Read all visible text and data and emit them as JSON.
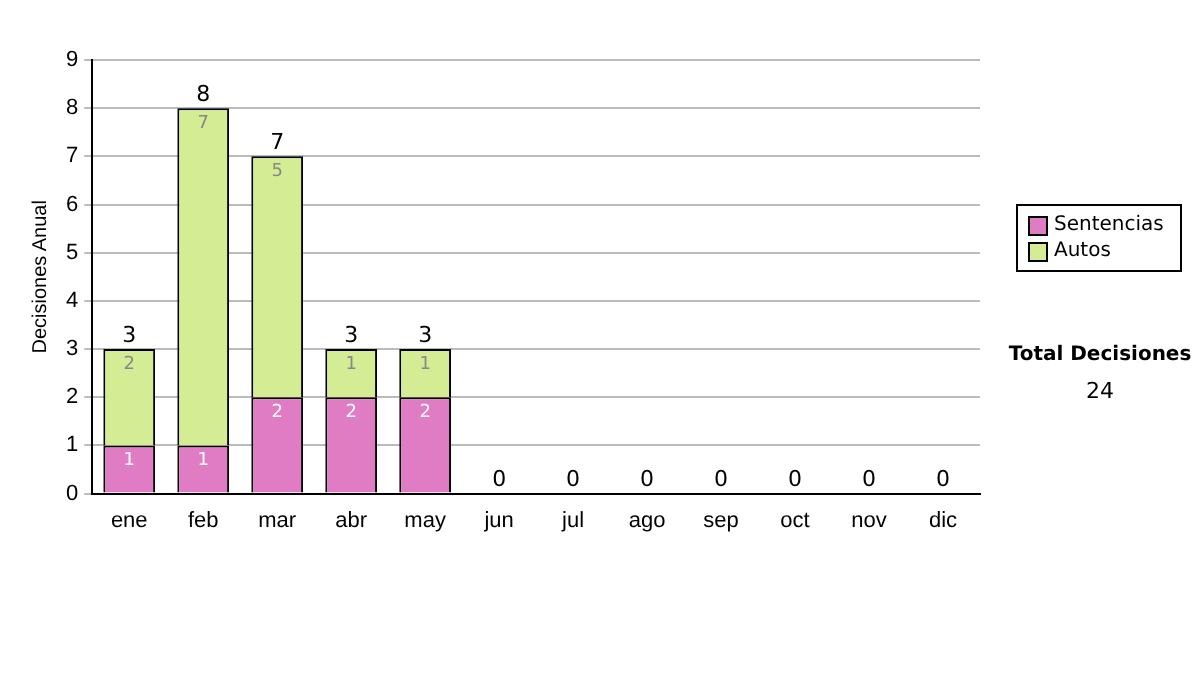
{
  "chart_data": {
    "type": "bar",
    "ylabel": "Decisiones Anual",
    "stacked": true,
    "grid": "y",
    "legend": "right",
    "categories": [
      "ene",
      "feb",
      "mar",
      "abr",
      "may",
      "jun",
      "jul",
      "ago",
      "sep",
      "oct",
      "nov",
      "dic"
    ],
    "series": [
      {
        "name": "Sentencias",
        "color": "#e07cc4",
        "values": [
          1,
          1,
          2,
          2,
          2,
          0,
          0,
          0,
          0,
          0,
          0,
          0
        ],
        "value_labels": [
          "1",
          "1",
          "2",
          "2",
          "2",
          null,
          null,
          null,
          null,
          null,
          null,
          null
        ]
      },
      {
        "name": "Autos",
        "color": "#d4ec94",
        "values": [
          2,
          7,
          5,
          1,
          1,
          0,
          0,
          0,
          0,
          0,
          0,
          0
        ],
        "value_labels": [
          "2",
          "7",
          "5",
          "1",
          "1",
          null,
          null,
          null,
          null,
          null,
          null,
          null
        ]
      }
    ],
    "totals": [
      "3",
      "8",
      "7",
      "3",
      "3",
      "0",
      "0",
      "0",
      "0",
      "0",
      "0",
      "0"
    ],
    "ylim": [
      0,
      9
    ],
    "yticks": [
      0,
      1,
      2,
      3,
      4,
      5,
      6,
      7,
      8,
      9
    ],
    "annotations": [
      "Total Decisiones",
      "24"
    ]
  }
}
